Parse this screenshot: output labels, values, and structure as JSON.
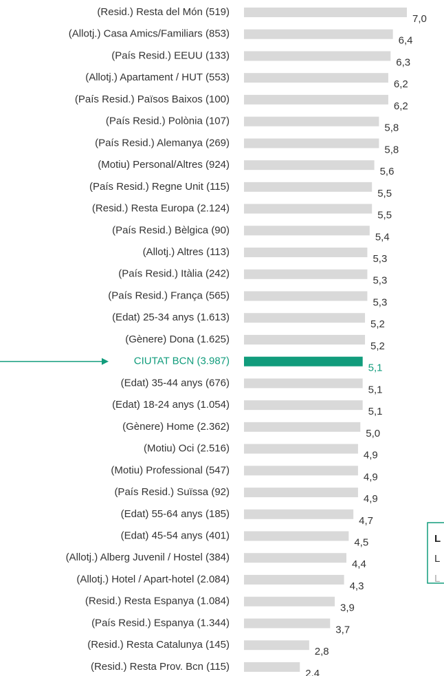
{
  "chart_data": {
    "type": "bar",
    "orientation": "horizontal",
    "categories": [
      "(Resid.) Resta del Món (519)",
      "(Allotj.) Casa Amics/Familiars (853)",
      "(País Resid.) EEUU (133)",
      "(Allotj.) Apartament / HUT (553)",
      "(País Resid.) Països Baixos (100)",
      "(País Resid.) Polònia (107)",
      "(País Resid.) Alemanya (269)",
      "(Motiu) Personal/Altres (924)",
      "(País Resid.) Regne Unit (115)",
      "(Resid.) Resta Europa (2.124)",
      "(País Resid.) Bèlgica (90)",
      "(Allotj.) Altres (113)",
      "(País Resid.) Itàlia (242)",
      "(País Resid.) França (565)",
      "(Edat) 25-34 anys  (1.613)",
      "(Gènere) Dona (1.625)",
      "CIUTAT BCN (3.987)",
      "(Edat) 35-44 anys (676)",
      "(Edat) 18-24 anys (1.054)",
      "(Gènere) Home (2.362)",
      "(Motiu) Oci (2.516)",
      "(Motiu) Professional (547)",
      "(País Resid.) Suïssa (92)",
      "(Edat) 55-64 anys (185)",
      "(Edat) 45-54 anys (401)",
      "(Allotj.) Alberg Juvenil / Hostel (384)",
      "(Allotj.) Hotel / Apart-hotel (2.084)",
      "(Resid.) Resta Espanya (1.084)",
      "(País Resid.) Espanya (1.344)",
      "(Resid.) Resta Catalunya (145)",
      "(Resid.) Resta Prov. Bcn (115)"
    ],
    "values": [
      7.0,
      6.4,
      6.3,
      6.2,
      6.2,
      5.8,
      5.8,
      5.6,
      5.5,
      5.5,
      5.4,
      5.3,
      5.3,
      5.3,
      5.2,
      5.2,
      5.1,
      5.1,
      5.1,
      5.0,
      4.9,
      4.9,
      4.9,
      4.7,
      4.5,
      4.4,
      4.3,
      3.9,
      3.7,
      2.8,
      2.4
    ],
    "value_labels": [
      "7,0",
      "6,4",
      "6,3",
      "6,2",
      "6,2",
      "5,8",
      "5,8",
      "5,6",
      "5,5",
      "5,5",
      "5,4",
      "5,3",
      "5,3",
      "5,3",
      "5,2",
      "5,2",
      "5,1",
      "5,1",
      "5,1",
      "5,0",
      "4,9",
      "4,9",
      "4,9",
      "4,7",
      "4,5",
      "4,4",
      "4,3",
      "3,9",
      "3,7",
      "2,8",
      "2,4"
    ],
    "color": "#d9d9d9",
    "highlight_index": 16,
    "highlight_color": "#119c7c",
    "xlim": [
      0,
      7
    ],
    "legend_box": {
      "lines": [
        "L",
        "L",
        "L"
      ]
    }
  }
}
